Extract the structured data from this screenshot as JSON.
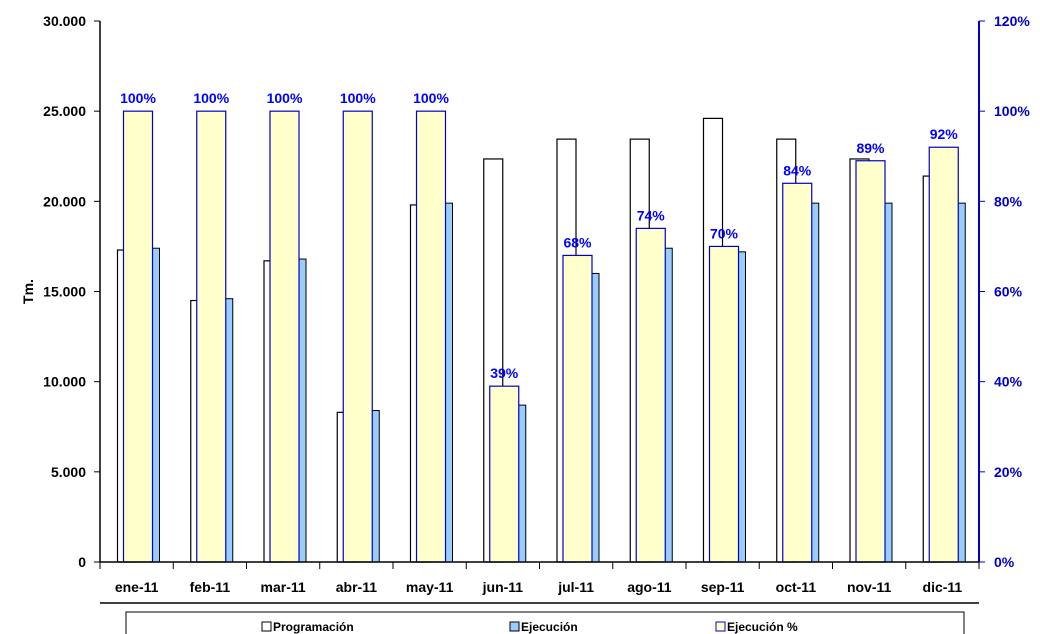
{
  "chart_data": {
    "type": "bar",
    "categories": [
      "ene-11",
      "feb-11",
      "mar-11",
      "abr-11",
      "may-11",
      "jun-11",
      "jul-11",
      "ago-11",
      "sep-11",
      "oct-11",
      "nov-11",
      "dic-11"
    ],
    "series": [
      {
        "name": "Programación",
        "axis": "left",
        "values": [
          17300,
          14500,
          16700,
          8300,
          19800,
          22350,
          23450,
          23450,
          24600,
          23450,
          22350,
          21400
        ]
      },
      {
        "name": "Ejecución",
        "axis": "left",
        "values": [
          17400,
          14600,
          16800,
          8400,
          19900,
          8700,
          16000,
          17400,
          17200,
          19900,
          19900,
          19900
        ]
      },
      {
        "name": "Ejecución %",
        "axis": "right",
        "values": [
          100,
          100,
          100,
          100,
          100,
          39,
          68,
          74,
          70,
          84,
          89,
          92
        ]
      }
    ],
    "data_labels": [
      "100%",
      "100%",
      "100%",
      "100%",
      "100%",
      "39%",
      "68%",
      "74%",
      "70%",
      "84%",
      "89%",
      "92%"
    ],
    "ylabel": "Tm.",
    "ylim": [
      0,
      30000
    ],
    "y_ticks": [
      "0",
      "5.000",
      "10.000",
      "15.000",
      "20.000",
      "25.000",
      "30.000"
    ],
    "y2lim": [
      0,
      120
    ],
    "y2_ticks": [
      "0%",
      "20%",
      "40%",
      "60%",
      "80%",
      "100%",
      "120%"
    ],
    "legend_position": "bottom",
    "grid": false,
    "colors": {
      "programacion_fill": "#ffffff",
      "ejecucion_fill": "#99ccff",
      "porcentaje_fill": "#ffffcc",
      "porcentaje_stroke": "#0000cc",
      "label_color": "#0000ff",
      "right_axis": "#0000cc",
      "left_axis": "#000000"
    }
  }
}
